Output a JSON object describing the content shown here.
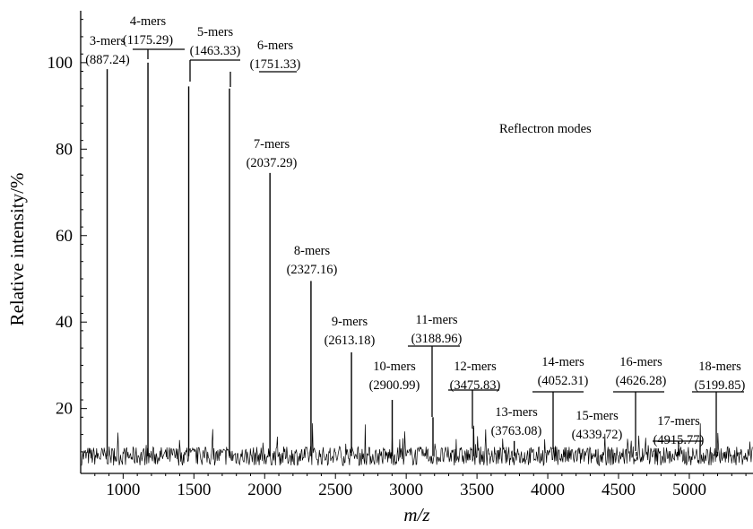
{
  "chart_data": {
    "type": "line",
    "title": "",
    "annotation": "Reflectron modes",
    "xlabel": "m/z",
    "ylabel": "Relative intensity/%",
    "xlim": [
      700,
      5450
    ],
    "ylim": [
      5,
      112
    ],
    "x_ticks": [
      1000,
      1500,
      2000,
      2500,
      3000,
      3500,
      4000,
      4500,
      5000
    ],
    "y_ticks": [
      20,
      40,
      60,
      80,
      100
    ],
    "grid": false,
    "legend": "none",
    "series_color": "#000000",
    "baseline_level": 9,
    "peaks": [
      {
        "name": "3-mers",
        "mz": "(887.24)",
        "x": 887.24,
        "y": 98.5
      },
      {
        "name": "4-mers",
        "mz": "(1175.29)",
        "x": 1175.29,
        "y": 100
      },
      {
        "name": "5-mers",
        "mz": "(1463.33)",
        "x": 1463.33,
        "y": 94.5
      },
      {
        "name": "6-mers",
        "mz": "(1751.33)",
        "x": 1751.33,
        "y": 94
      },
      {
        "name": "7-mers",
        "mz": "(2037.29)",
        "x": 2037.29,
        "y": 74.5
      },
      {
        "name": "8-mers",
        "mz": "(2327.16)",
        "x": 2327.16,
        "y": 49.5
      },
      {
        "name": "9-mers",
        "mz": "(2613.18)",
        "x": 2613.18,
        "y": 33
      },
      {
        "name": "10-mers",
        "mz": "(2900.99)",
        "x": 2900.99,
        "y": 22
      },
      {
        "name": "11-mers",
        "mz": "(3188.96)",
        "x": 3188.96,
        "y": 18
      },
      {
        "name": "12-mers",
        "mz": "(3475.83)",
        "x": 3475.83,
        "y": 15.5
      },
      {
        "name": "13-mers",
        "mz": "(3763.08)",
        "x": 3763.08,
        "y": 12.5
      },
      {
        "name": "14-mers",
        "mz": "(4052.31)",
        "x": 4052.31,
        "y": 11
      },
      {
        "name": "15-mers",
        "mz": "(4339.72)",
        "x": 4339.72,
        "y": 10.5
      },
      {
        "name": "16-mers",
        "mz": "(4626.28)",
        "x": 4626.28,
        "y": 10
      },
      {
        "name": "17-mers",
        "mz": "(4915.77)",
        "x": 4915.77,
        "y": 10
      },
      {
        "name": "18-mers",
        "mz": "(5199.85)",
        "x": 5199.85,
        "y": 10
      }
    ]
  }
}
